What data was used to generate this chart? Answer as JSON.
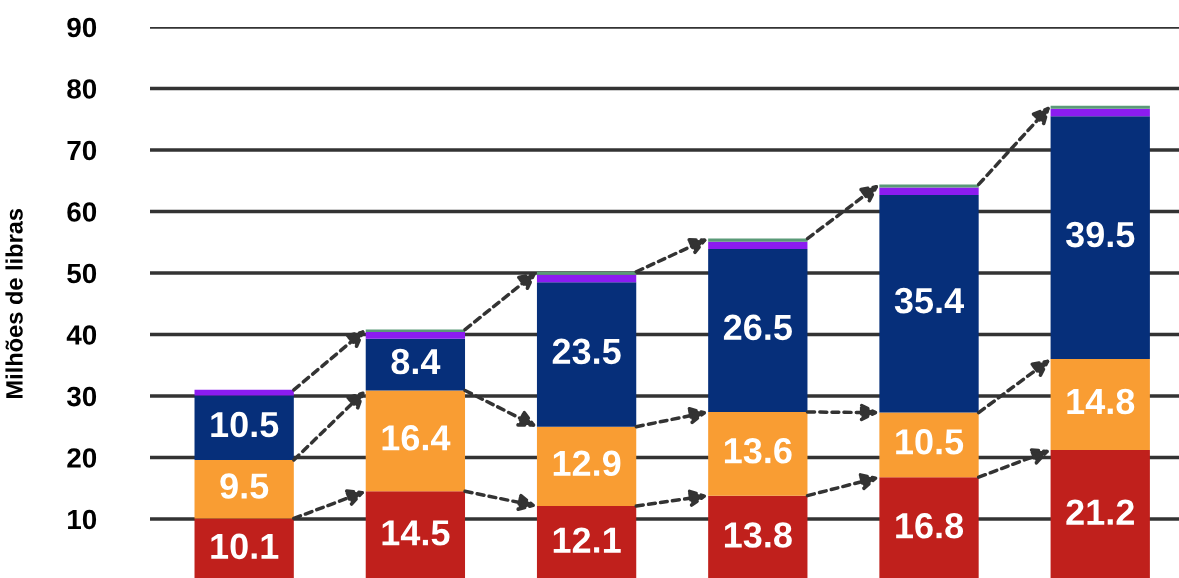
{
  "chart_data": {
    "type": "bar",
    "stacked": true,
    "ylabel": "Milhões de libras",
    "categories": [
      null,
      null,
      null,
      null,
      null,
      null
    ],
    "series": [
      {
        "color": "#c0201c",
        "values": [
          10.1,
          14.5,
          12.1,
          13.8,
          16.8,
          21.2
        ],
        "value_labels": [
          "10.1",
          "14.5",
          "12.1",
          "13.8",
          "16.8",
          "21.2"
        ]
      },
      {
        "color": "#f99d33",
        "values": [
          9.5,
          16.4,
          12.9,
          13.6,
          10.5,
          14.8
        ],
        "value_labels": [
          "9.5",
          "16.4",
          "12.9",
          "13.6",
          "10.5",
          "14.8"
        ]
      },
      {
        "color": "#062f7a",
        "values": [
          10.5,
          8.4,
          23.5,
          26.5,
          35.4,
          39.5
        ],
        "value_labels": [
          "10.5",
          "8.4",
          "23.5",
          "26.5",
          "35.4",
          "39.5"
        ]
      },
      {
        "color": "#8b1cf0",
        "values": [
          0.9,
          1.1,
          1.2,
          1.2,
          1.2,
          1.2
        ]
      },
      {
        "color": "#5a9a78",
        "values": [
          null,
          0.4,
          0.5,
          0.5,
          0.5,
          0.5
        ]
      }
    ],
    "ylim": [
      0,
      90
    ],
    "yticks": [
      10,
      20,
      30,
      40,
      50,
      60,
      70,
      80,
      90
    ],
    "grid": "y",
    "tick_labels": "y",
    "legend": false
  }
}
